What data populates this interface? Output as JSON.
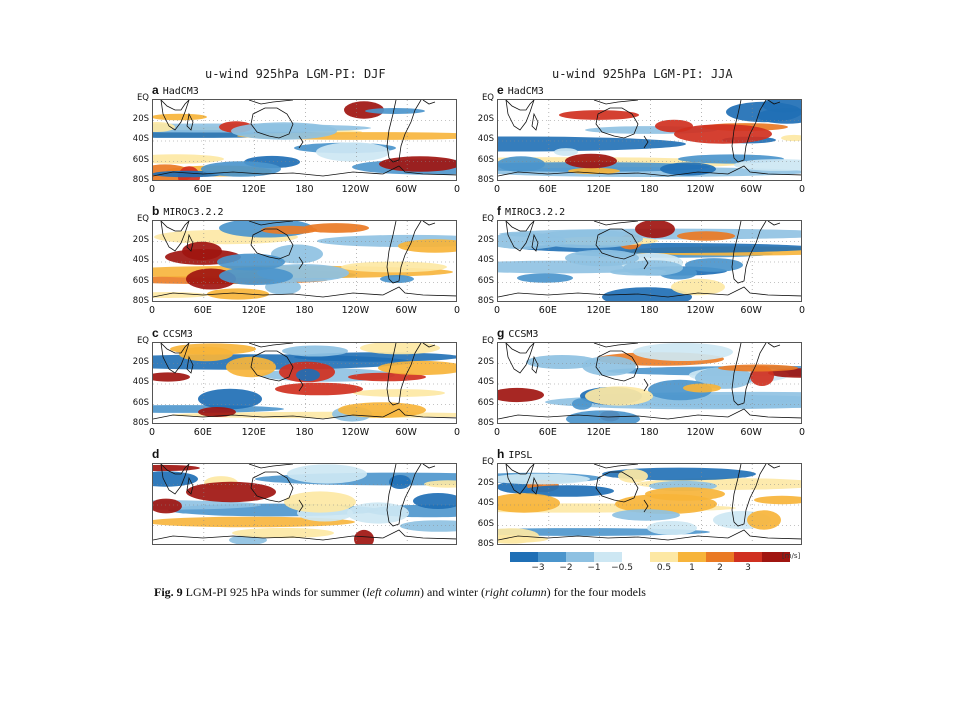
{
  "column_titles": {
    "left": "u-wind 925hPa LGM-PI: DJF",
    "right": "u-wind 925hPa LGM-PI: JJA"
  },
  "y_ticks": [
    "EQ",
    "20S",
    "40S",
    "60S",
    "80S"
  ],
  "x_ticks": [
    "0",
    "60E",
    "120E",
    "180",
    "120W",
    "60W",
    "0"
  ],
  "panels": {
    "a": {
      "letter": "a",
      "model": "HadCM3"
    },
    "b": {
      "letter": "b",
      "model": "MIROC3.2.2"
    },
    "c": {
      "letter": "c",
      "model": "CCSM3"
    },
    "d": {
      "letter": "d",
      "model": ""
    },
    "e": {
      "letter": "e",
      "model": "HadCM3"
    },
    "f": {
      "letter": "f",
      "model": "MIROC3.2.2"
    },
    "g": {
      "letter": "g",
      "model": "CCSM3"
    },
    "h": {
      "letter": "h",
      "model": "IPSL"
    }
  },
  "colorbar": {
    "ticks": [
      "−3",
      "−2",
      "−1",
      "−0.5",
      "0.5",
      "1",
      "2",
      "3"
    ],
    "unit": "[m/s]",
    "colors": [
      "#1f6fb5",
      "#4b95cc",
      "#8ec1e2",
      "#cde7f3",
      "#ffffff",
      "#fde8a4",
      "#f7b43a",
      "#ea7a24",
      "#d03020",
      "#a01510"
    ]
  },
  "caption": {
    "fig": "Fig. 9",
    "text_a": " LGM-PI 925 hPa winds for summer (",
    "em_a": "left column",
    "text_b": ") and winter (",
    "em_b": "right column",
    "text_c": ") for the four models"
  }
}
